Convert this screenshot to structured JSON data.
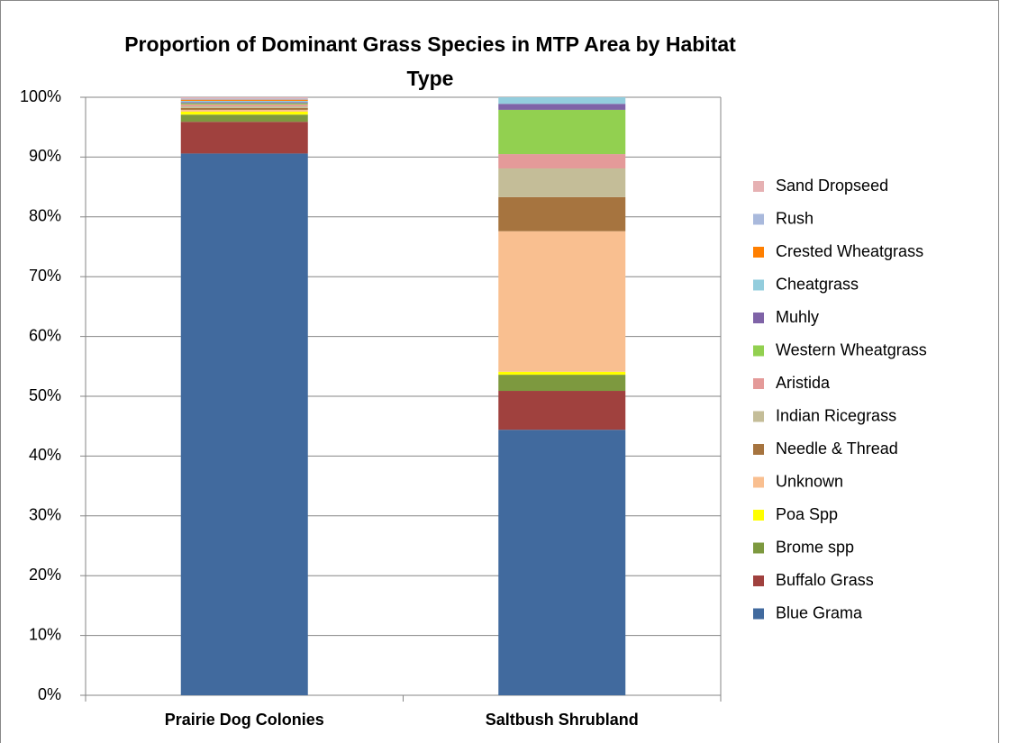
{
  "chart_data": {
    "type": "bar",
    "stacked": true,
    "title": "Proportion of Dominant Grass Species in MTP Area by Habitat Type",
    "categories": [
      "Prairie Dog Colonies",
      "Saltbush Shrubland"
    ],
    "series": [
      {
        "name": "Blue Grama",
        "color": "#416A9E",
        "values": [
          90.6,
          44.4
        ]
      },
      {
        "name": "Buffalo Grass",
        "color": "#A0413E",
        "values": [
          5.3,
          6.5
        ]
      },
      {
        "name": "Brome spp",
        "color": "#7D993F",
        "values": [
          1.2,
          2.7
        ]
      },
      {
        "name": "Poa Spp",
        "color": "#FFFF00",
        "values": [
          0.5,
          0.5
        ]
      },
      {
        "name": "Unknown",
        "color": "#F9BF90",
        "values": [
          0.3,
          23.5
        ]
      },
      {
        "name": "Needle & Thread",
        "color": "#A6743F",
        "values": [
          0.3,
          5.7
        ]
      },
      {
        "name": "Indian Ricegrass",
        "color": "#C4BD98",
        "values": [
          0.3,
          4.8
        ]
      },
      {
        "name": "Aristida",
        "color": "#E49A99",
        "values": [
          0.3,
          2.4
        ]
      },
      {
        "name": "Western Wheatgrass",
        "color": "#92D050",
        "values": [
          0.2,
          7.4
        ]
      },
      {
        "name": "Muhly",
        "color": "#7F63A7",
        "values": [
          0.2,
          1.0
        ]
      },
      {
        "name": "Cheatgrass",
        "color": "#93CDDD",
        "values": [
          0.2,
          1.1
        ]
      },
      {
        "name": "Crested Wheatgrass",
        "color": "#FF7F00",
        "values": [
          0.2,
          0
        ]
      },
      {
        "name": "Rush",
        "color": "#A9B9DC",
        "values": [
          0.2,
          0
        ]
      },
      {
        "name": "Sand Dropseed",
        "color": "#E6B1B3",
        "values": [
          0.2,
          0
        ]
      }
    ],
    "ylim": [
      0,
      100
    ],
    "yticks": [
      {
        "value": 0,
        "label": "0%"
      },
      {
        "value": 10,
        "label": "10%"
      },
      {
        "value": 20,
        "label": "20%"
      },
      {
        "value": 30,
        "label": "30%"
      },
      {
        "value": 40,
        "label": "40%"
      },
      {
        "value": 50,
        "label": "50%"
      },
      {
        "value": 60,
        "label": "60%"
      },
      {
        "value": 70,
        "label": "70%"
      },
      {
        "value": 80,
        "label": "80%"
      },
      {
        "value": 90,
        "label": "90%"
      },
      {
        "value": 100,
        "label": "100%"
      }
    ],
    "grid": true,
    "legend": "right"
  }
}
